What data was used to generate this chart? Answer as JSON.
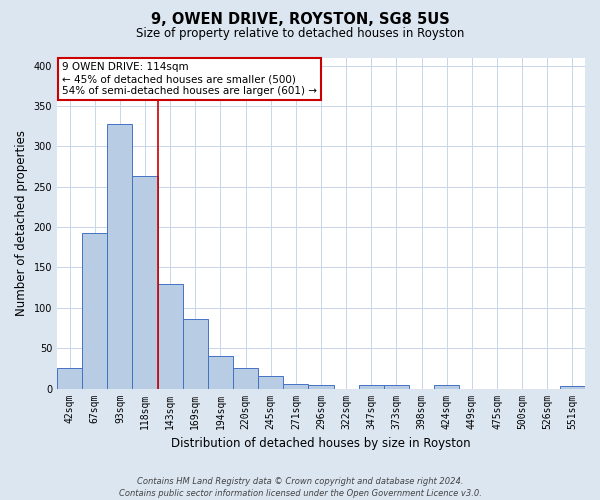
{
  "title": "9, OWEN DRIVE, ROYSTON, SG8 5US",
  "subtitle": "Size of property relative to detached houses in Royston",
  "xlabel": "Distribution of detached houses by size in Royston",
  "ylabel": "Number of detached properties",
  "bar_labels": [
    "42sqm",
    "67sqm",
    "93sqm",
    "118sqm",
    "143sqm",
    "169sqm",
    "194sqm",
    "220sqm",
    "245sqm",
    "271sqm",
    "296sqm",
    "322sqm",
    "347sqm",
    "373sqm",
    "398sqm",
    "424sqm",
    "449sqm",
    "475sqm",
    "500sqm",
    "526sqm",
    "551sqm"
  ],
  "bar_values": [
    25,
    193,
    328,
    263,
    130,
    86,
    40,
    26,
    15,
    6,
    4,
    0,
    4,
    4,
    0,
    4,
    0,
    0,
    0,
    0,
    3
  ],
  "bar_color": "#b8cce4",
  "bar_edge_color": "#4472c4",
  "red_line_index": 3,
  "red_line_color": "#cc0000",
  "annotation_text": "9 OWEN DRIVE: 114sqm\n← 45% of detached houses are smaller (500)\n54% of semi-detached houses are larger (601) →",
  "annotation_box_color": "#ffffff",
  "annotation_box_edge": "#cc0000",
  "ylim": [
    0,
    410
  ],
  "yticks": [
    0,
    50,
    100,
    150,
    200,
    250,
    300,
    350,
    400
  ],
  "grid_color": "#c8d4e8",
  "plot_bg_color": "#ffffff",
  "fig_bg_color": "#dce6f1",
  "footnote": "Contains HM Land Registry data © Crown copyright and database right 2024.\nContains public sector information licensed under the Open Government Licence v3.0."
}
